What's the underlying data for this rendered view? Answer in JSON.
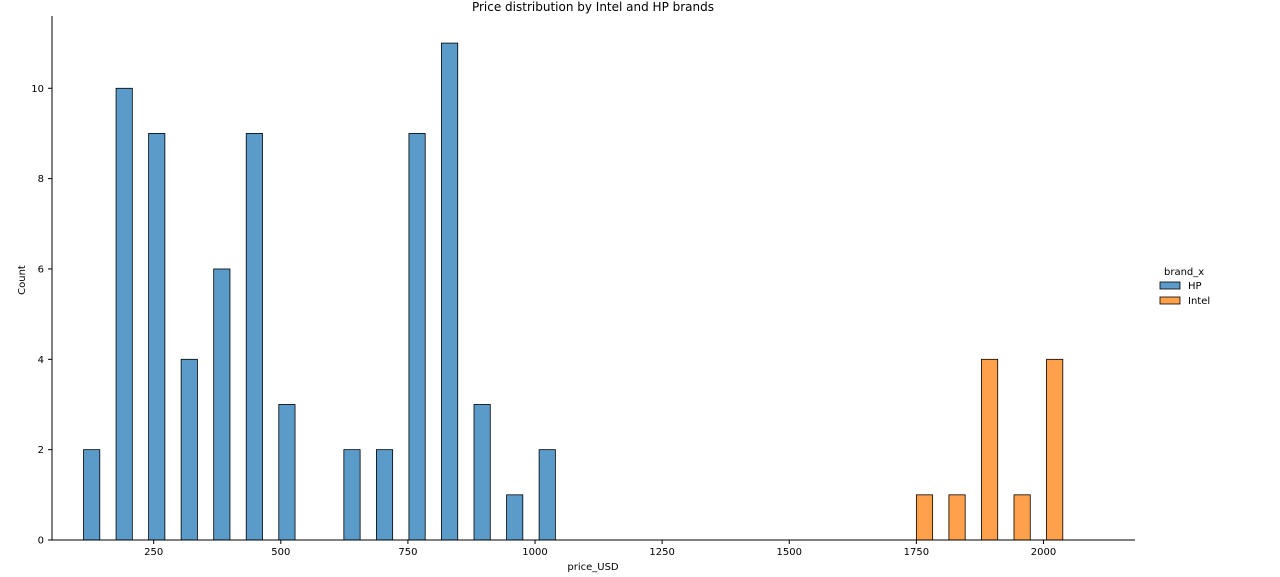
{
  "chart_data": {
    "type": "bar",
    "title": "Price distribution by Intel and HP brands",
    "xlabel": "price_USD",
    "ylabel": "Count",
    "xlim": [
      50,
      2180
    ],
    "ylim": [
      0,
      11.6
    ],
    "xticks": [
      250,
      500,
      750,
      1000,
      1250,
      1500,
      1750,
      2000
    ],
    "yticks": [
      0,
      2,
      4,
      6,
      8,
      10
    ],
    "bin_width": 64,
    "grid": false,
    "legend": {
      "title": "brand_x",
      "placement": "right"
    },
    "series": [
      {
        "name": "HP",
        "color": "#5b9bc9",
        "bins": [
          {
            "x": 128,
            "count": 2
          },
          {
            "x": 192,
            "count": 10
          },
          {
            "x": 256,
            "count": 9
          },
          {
            "x": 320,
            "count": 4
          },
          {
            "x": 384,
            "count": 6
          },
          {
            "x": 448,
            "count": 9
          },
          {
            "x": 512,
            "count": 3
          },
          {
            "x": 640,
            "count": 2
          },
          {
            "x": 704,
            "count": 2
          },
          {
            "x": 768,
            "count": 9
          },
          {
            "x": 832,
            "count": 11
          },
          {
            "x": 896,
            "count": 3
          },
          {
            "x": 960,
            "count": 1
          },
          {
            "x": 1024,
            "count": 2
          }
        ]
      },
      {
        "name": "Intel",
        "color": "#ffa04a",
        "bins": [
          {
            "x": 1766,
            "count": 1
          },
          {
            "x": 1830,
            "count": 1
          },
          {
            "x": 1894,
            "count": 4
          },
          {
            "x": 1958,
            "count": 1
          },
          {
            "x": 2022,
            "count": 4
          }
        ]
      }
    ]
  }
}
